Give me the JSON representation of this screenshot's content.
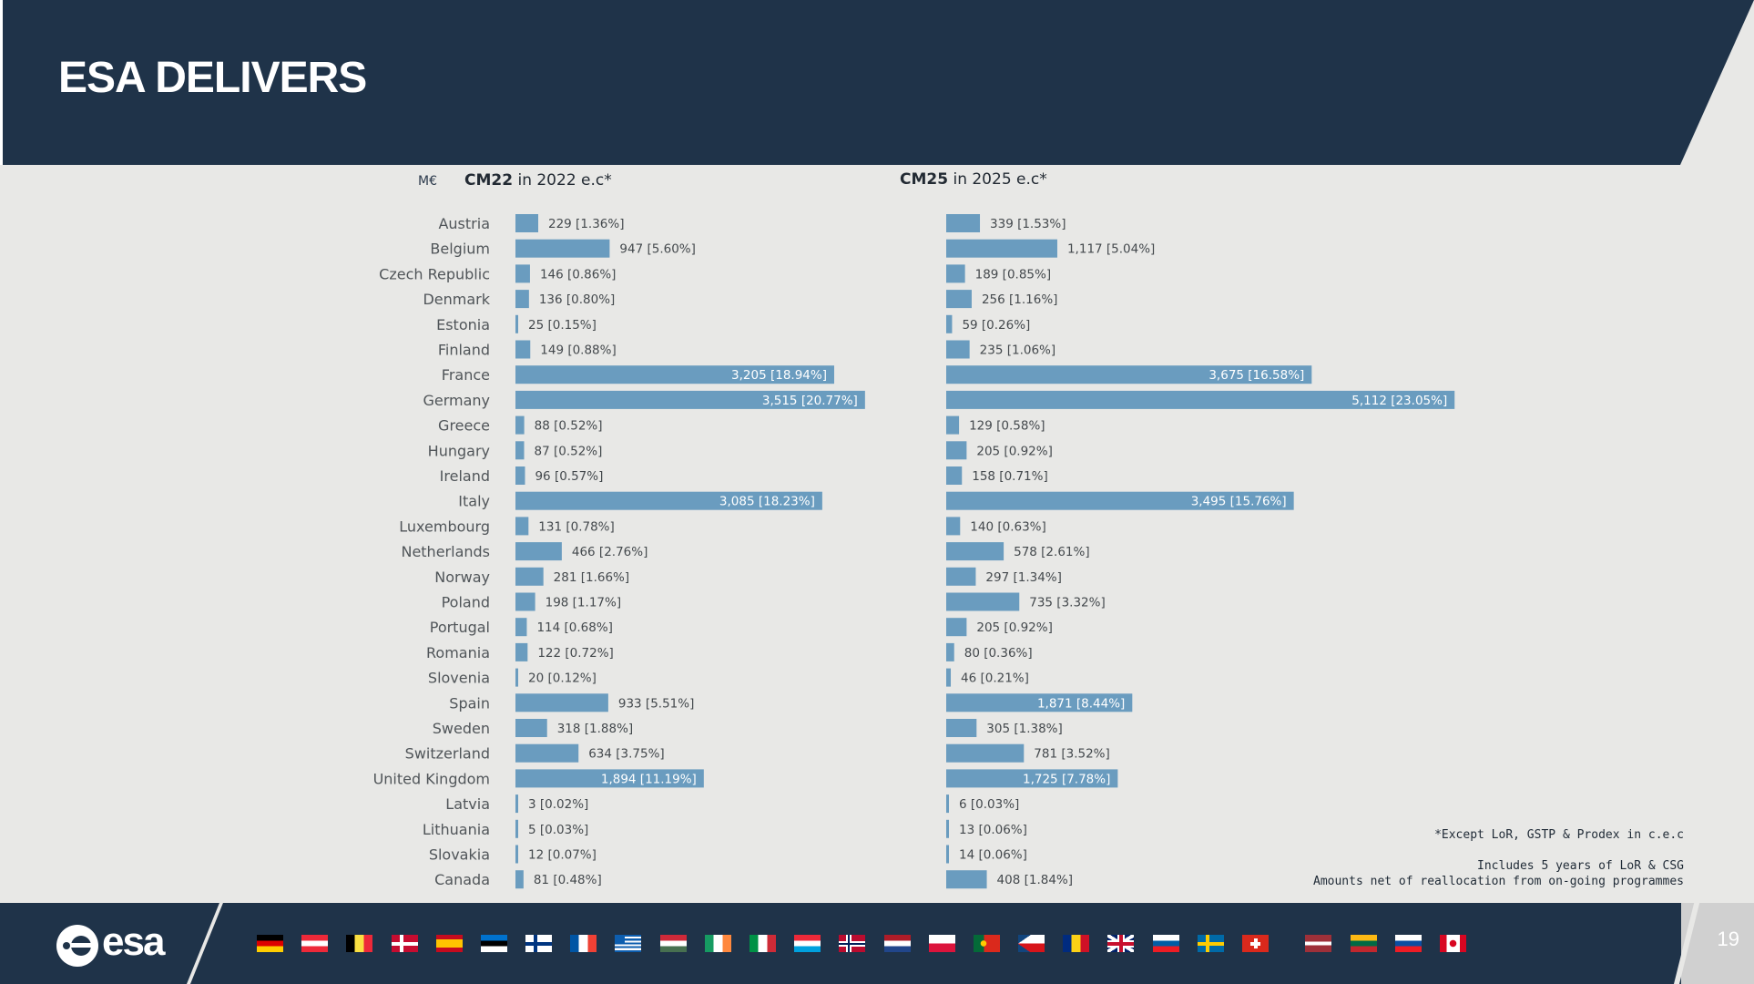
{
  "header": {
    "title": "ESA DELIVERS"
  },
  "chart_data": {
    "type": "bar",
    "orientation": "horizontal",
    "unit_label": "M€",
    "categories": [
      "Austria",
      "Belgium",
      "Czech Republic",
      "Denmark",
      "Estonia",
      "Finland",
      "France",
      "Germany",
      "Greece",
      "Hungary",
      "Ireland",
      "Italy",
      "Luxembourg",
      "Netherlands",
      "Norway",
      "Poland",
      "Portugal",
      "Romania",
      "Slovenia",
      "Spain",
      "Sweden",
      "Switzerland",
      "United Kingdom",
      "Latvia",
      "Lithuania",
      "Slovakia",
      "Canada"
    ],
    "series": [
      {
        "name_bold": "CM22",
        "name_rest": " in 2022 e.c*",
        "values": [
          229,
          947,
          146,
          136,
          25,
          149,
          3205,
          3515,
          88,
          87,
          96,
          3085,
          131,
          466,
          281,
          198,
          114,
          122,
          20,
          933,
          318,
          634,
          1894,
          3,
          5,
          12,
          81
        ],
        "labels": [
          "229",
          "947",
          "146",
          "136",
          "25",
          "149",
          "3,205",
          "3,515",
          "88",
          "87",
          "96",
          "3,085",
          "131",
          "466",
          "281",
          "198",
          "114",
          "122",
          "20",
          "933",
          "318",
          "634",
          "1,894",
          "3",
          "5",
          "12",
          "81"
        ],
        "shares": [
          "[1.36%]",
          "[5.60%]",
          "[0.86%]",
          "[0.80%]",
          "[0.15%]",
          "[0.88%]",
          "[18.94%]",
          "[20.77%]",
          "[0.52%]",
          "[0.52%]",
          "[0.57%]",
          "[18.23%]",
          "[0.78%]",
          "[2.76%]",
          "[1.66%]",
          "[1.17%]",
          "[0.68%]",
          "[0.72%]",
          "[0.12%]",
          "[5.51%]",
          "[1.88%]",
          "[3.75%]",
          "[11.19%]",
          "[0.02%]",
          "[0.03%]",
          "[0.07%]",
          "[0.48%]"
        ]
      },
      {
        "name_bold": "CM25",
        "name_rest": " in 2025 e.c*",
        "values": [
          339,
          1117,
          189,
          256,
          59,
          235,
          3675,
          5112,
          129,
          205,
          158,
          3495,
          140,
          578,
          297,
          735,
          205,
          80,
          46,
          1871,
          305,
          781,
          1725,
          6,
          13,
          14,
          408
        ],
        "labels": [
          "339",
          "1,117",
          "189",
          "256",
          "59",
          "235",
          "3,675",
          "5,112",
          "129",
          "205",
          "158",
          "3,495",
          "140",
          "578",
          "297",
          "735",
          "205",
          "80",
          "46",
          "1,871",
          "305",
          "781",
          "1,725",
          "6",
          "13",
          "14",
          "408"
        ],
        "shares": [
          "[1.53%]",
          "[5.04%]",
          "[0.85%]",
          "[1.16%]",
          "[0.26%]",
          "[1.06%]",
          "[16.58%]",
          "[23.05%]",
          "[0.58%]",
          "[0.92%]",
          "[0.71%]",
          "[15.76%]",
          "[0.63%]",
          "[2.61%]",
          "[1.34%]",
          "[3.32%]",
          "[0.92%]",
          "[0.36%]",
          "[0.21%]",
          "[8.44%]",
          "[1.38%]",
          "[3.52%]",
          "[7.78%]",
          "[0.03%]",
          "[0.06%]",
          "[0.06%]",
          "[1.84%]"
        ]
      }
    ]
  },
  "notes": {
    "line1": "*Except LoR, GSTP & Prodex in c.e.c",
    "line2": "Includes 5 years of LoR & CSG",
    "line3": "Amounts net of reallocation from on-going programmes"
  },
  "footer": {
    "logo_text": "esa",
    "page_number": "19",
    "flags": [
      "germany-flag",
      "austria-flag",
      "belgium-flag",
      "denmark-flag",
      "spain-flag",
      "estonia-flag",
      "finland-flag",
      "france-flag",
      "greece-flag",
      "hungary-flag",
      "ireland-flag",
      "italy-flag",
      "luxembourg-flag",
      "norway-flag",
      "netherlands-flag",
      "poland-flag",
      "portugal-flag",
      "czech-republic-flag",
      "romania-flag",
      "united-kingdom-flag",
      "slovenia-flag",
      "sweden-flag",
      "switzerland-flag",
      "latvia-flag",
      "lithuania-flag",
      "slovakia-flag",
      "canada-flag"
    ]
  }
}
